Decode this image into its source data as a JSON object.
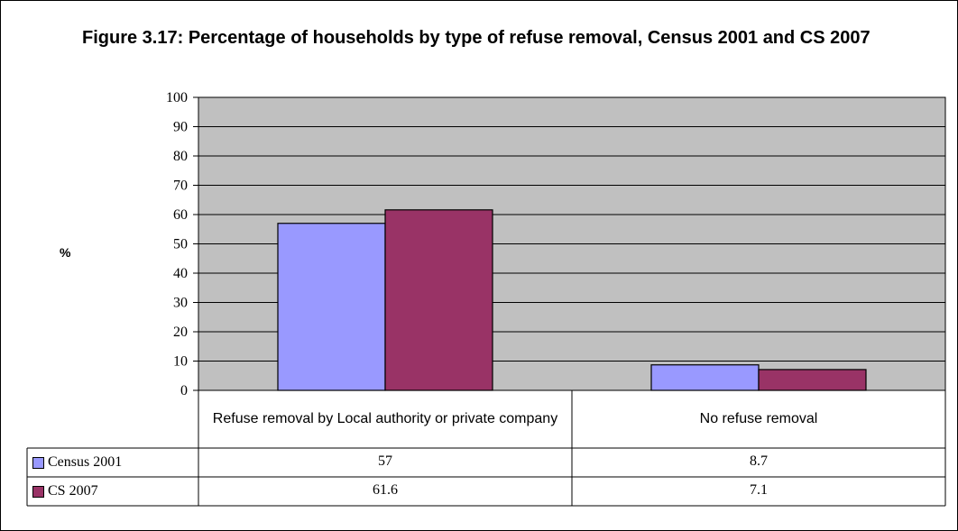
{
  "chart_data": {
    "type": "bar",
    "title": "Figure 3.17: Percentage of households by type of refuse removal, Census 2001 and CS 2007",
    "xlabel": "",
    "ylabel": "%",
    "ylim": [
      0,
      100
    ],
    "yticks": [
      0,
      10,
      20,
      30,
      40,
      50,
      60,
      70,
      80,
      90,
      100
    ],
    "grid": true,
    "legend_placement": "data table",
    "categories": [
      "Refuse removal by Local authority or private company",
      "No refuse removal"
    ],
    "series": [
      {
        "name": "Census 2001",
        "values": [
          57,
          8.7
        ],
        "value_labels": [
          "57",
          "8.7"
        ],
        "color": "#9999ff"
      },
      {
        "name": "CS 2007",
        "values": [
          61.6,
          7.1
        ],
        "value_labels": [
          "61.6",
          "7.1"
        ],
        "color": "#993366"
      }
    ],
    "plot_background": "#c0c0c0"
  }
}
